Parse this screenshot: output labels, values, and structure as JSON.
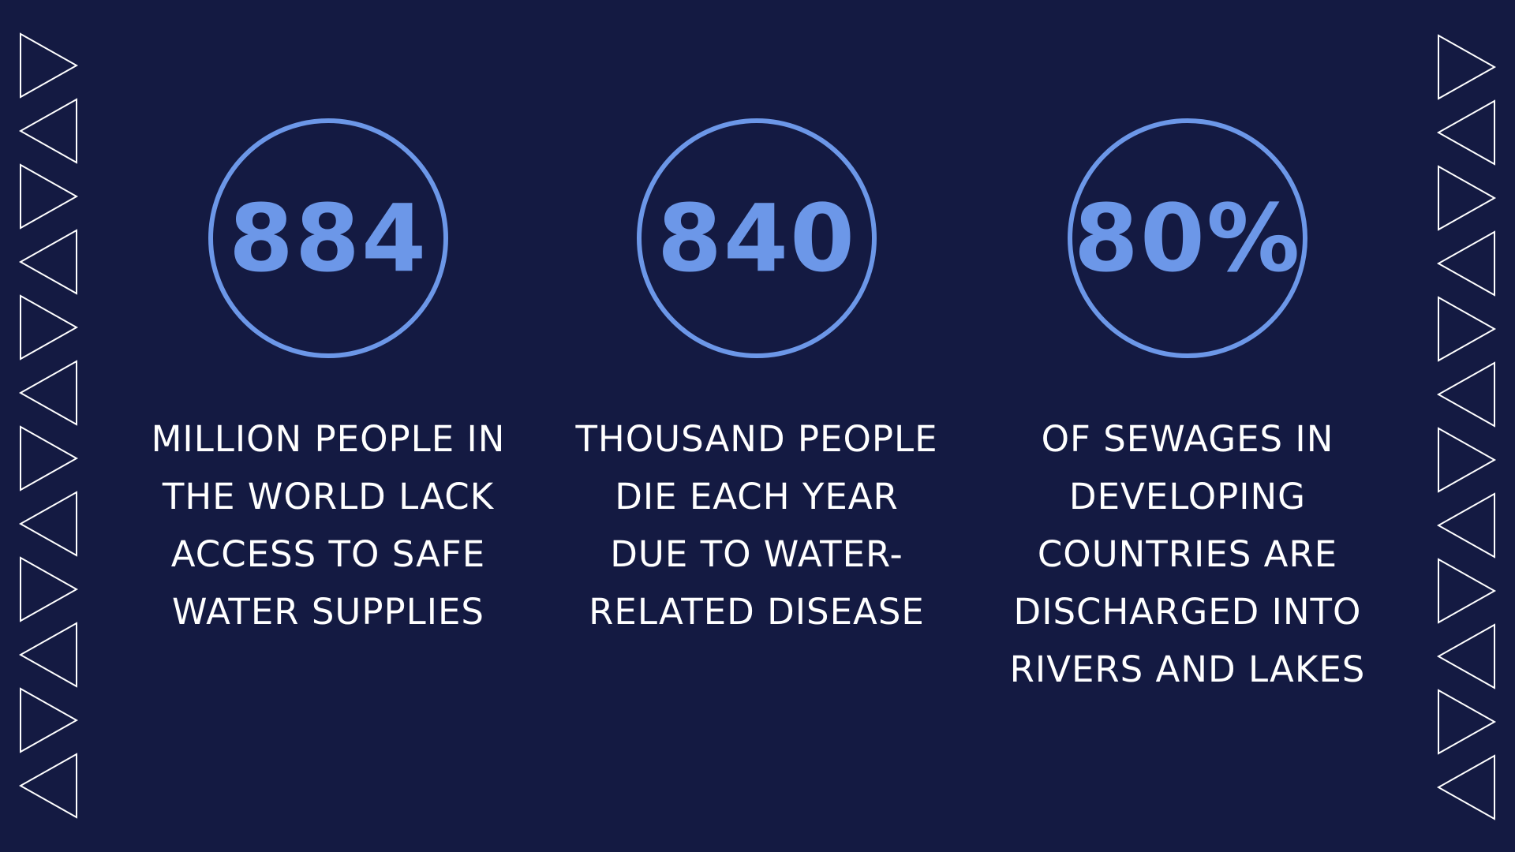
{
  "colors": {
    "background": "#141a42",
    "accent": "#6c97e8",
    "text": "#ffffff"
  },
  "stats": [
    {
      "number": "884",
      "caption": "MILLION PEOPLE IN THE WORLD LACK ACCESS TO SAFE WATER SUPPLIES"
    },
    {
      "number": "840",
      "caption": "THOUSAND PEOPLE DIE EACH YEAR DUE TO WATER-RELATED DISEASE"
    },
    {
      "number": "80%",
      "caption": "OF SEWAGES IN DEVELOPING COUNTRIES ARE DISCHARGED INTO RIVERS AND LAKES"
    }
  ],
  "decorations": {
    "left_strip": "triangle-outline-pattern",
    "right_strip": "triangle-outline-pattern"
  }
}
